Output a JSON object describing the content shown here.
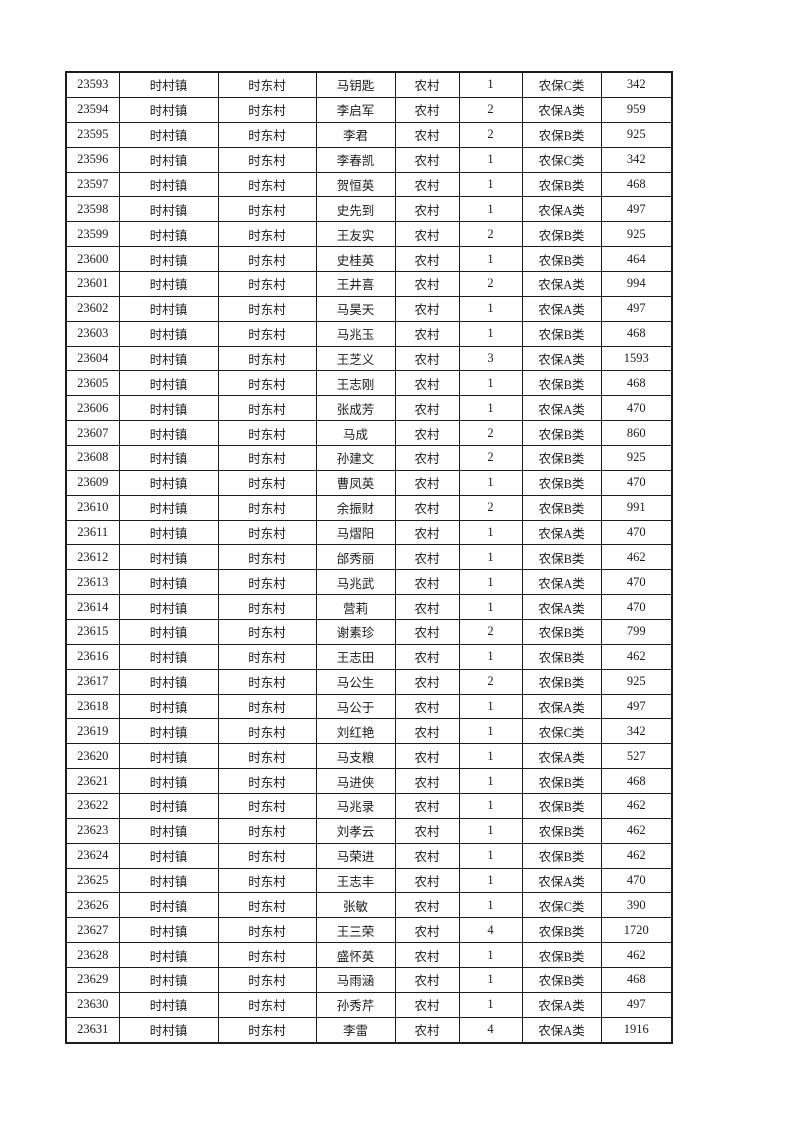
{
  "page": {
    "background_color": "#ffffff",
    "text_color": "#1c1c1c",
    "border_color": "#1c1c1c"
  },
  "table": {
    "column_keys": [
      "id",
      "town",
      "village",
      "name",
      "type",
      "count",
      "category",
      "amount"
    ],
    "rows": [
      [
        "23593",
        "时村镇",
        "时东村",
        "马钥匙",
        "农村",
        "1",
        "农保C类",
        "342"
      ],
      [
        "23594",
        "时村镇",
        "时东村",
        "李启军",
        "农村",
        "2",
        "农保A类",
        "959"
      ],
      [
        "23595",
        "时村镇",
        "时东村",
        "李君",
        "农村",
        "2",
        "农保B类",
        "925"
      ],
      [
        "23596",
        "时村镇",
        "时东村",
        "李春凯",
        "农村",
        "1",
        "农保C类",
        "342"
      ],
      [
        "23597",
        "时村镇",
        "时东村",
        "贺恒英",
        "农村",
        "1",
        "农保B类",
        "468"
      ],
      [
        "23598",
        "时村镇",
        "时东村",
        "史先到",
        "农村",
        "1",
        "农保A类",
        "497"
      ],
      [
        "23599",
        "时村镇",
        "时东村",
        "王友实",
        "农村",
        "2",
        "农保B类",
        "925"
      ],
      [
        "23600",
        "时村镇",
        "时东村",
        "史桂英",
        "农村",
        "1",
        "农保B类",
        "464"
      ],
      [
        "23601",
        "时村镇",
        "时东村",
        "王井喜",
        "农村",
        "2",
        "农保A类",
        "994"
      ],
      [
        "23602",
        "时村镇",
        "时东村",
        "马昊天",
        "农村",
        "1",
        "农保A类",
        "497"
      ],
      [
        "23603",
        "时村镇",
        "时东村",
        "马兆玉",
        "农村",
        "1",
        "农保B类",
        "468"
      ],
      [
        "23604",
        "时村镇",
        "时东村",
        "王芝义",
        "农村",
        "3",
        "农保A类",
        "1593"
      ],
      [
        "23605",
        "时村镇",
        "时东村",
        "王志刚",
        "农村",
        "1",
        "农保B类",
        "468"
      ],
      [
        "23606",
        "时村镇",
        "时东村",
        "张成芳",
        "农村",
        "1",
        "农保A类",
        "470"
      ],
      [
        "23607",
        "时村镇",
        "时东村",
        "马成",
        "农村",
        "2",
        "农保B类",
        "860"
      ],
      [
        "23608",
        "时村镇",
        "时东村",
        "孙建文",
        "农村",
        "2",
        "农保B类",
        "925"
      ],
      [
        "23609",
        "时村镇",
        "时东村",
        "曹凤英",
        "农村",
        "1",
        "农保B类",
        "470"
      ],
      [
        "23610",
        "时村镇",
        "时东村",
        "余振财",
        "农村",
        "2",
        "农保B类",
        "991"
      ],
      [
        "23611",
        "时村镇",
        "时东村",
        "马熠阳",
        "农村",
        "1",
        "农保A类",
        "470"
      ],
      [
        "23612",
        "时村镇",
        "时东村",
        "邰秀丽",
        "农村",
        "1",
        "农保B类",
        "462"
      ],
      [
        "23613",
        "时村镇",
        "时东村",
        "马兆武",
        "农村",
        "1",
        "农保A类",
        "470"
      ],
      [
        "23614",
        "时村镇",
        "时东村",
        "营莉",
        "农村",
        "1",
        "农保A类",
        "470"
      ],
      [
        "23615",
        "时村镇",
        "时东村",
        "谢素珍",
        "农村",
        "2",
        "农保B类",
        "799"
      ],
      [
        "23616",
        "时村镇",
        "时东村",
        "王志田",
        "农村",
        "1",
        "农保B类",
        "462"
      ],
      [
        "23617",
        "时村镇",
        "时东村",
        "马公生",
        "农村",
        "2",
        "农保B类",
        "925"
      ],
      [
        "23618",
        "时村镇",
        "时东村",
        "马公于",
        "农村",
        "1",
        "农保A类",
        "497"
      ],
      [
        "23619",
        "时村镇",
        "时东村",
        "刘红艳",
        "农村",
        "1",
        "农保C类",
        "342"
      ],
      [
        "23620",
        "时村镇",
        "时东村",
        "马支粮",
        "农村",
        "1",
        "农保A类",
        "527"
      ],
      [
        "23621",
        "时村镇",
        "时东村",
        "马进侠",
        "农村",
        "1",
        "农保B类",
        "468"
      ],
      [
        "23622",
        "时村镇",
        "时东村",
        "马兆录",
        "农村",
        "1",
        "农保B类",
        "462"
      ],
      [
        "23623",
        "时村镇",
        "时东村",
        "刘孝云",
        "农村",
        "1",
        "农保B类",
        "462"
      ],
      [
        "23624",
        "时村镇",
        "时东村",
        "马荣进",
        "农村",
        "1",
        "农保B类",
        "462"
      ],
      [
        "23625",
        "时村镇",
        "时东村",
        "王志丰",
        "农村",
        "1",
        "农保A类",
        "470"
      ],
      [
        "23626",
        "时村镇",
        "时东村",
        "张敏",
        "农村",
        "1",
        "农保C类",
        "390"
      ],
      [
        "23627",
        "时村镇",
        "时东村",
        "王三荣",
        "农村",
        "4",
        "农保B类",
        "1720"
      ],
      [
        "23628",
        "时村镇",
        "时东村",
        "盛怀英",
        "农村",
        "1",
        "农保B类",
        "462"
      ],
      [
        "23629",
        "时村镇",
        "时东村",
        "马雨涵",
        "农村",
        "1",
        "农保B类",
        "468"
      ],
      [
        "23630",
        "时村镇",
        "时东村",
        "孙秀芹",
        "农村",
        "1",
        "农保A类",
        "497"
      ],
      [
        "23631",
        "时村镇",
        "时东村",
        "李雷",
        "农村",
        "4",
        "农保A类",
        "1916"
      ]
    ]
  }
}
